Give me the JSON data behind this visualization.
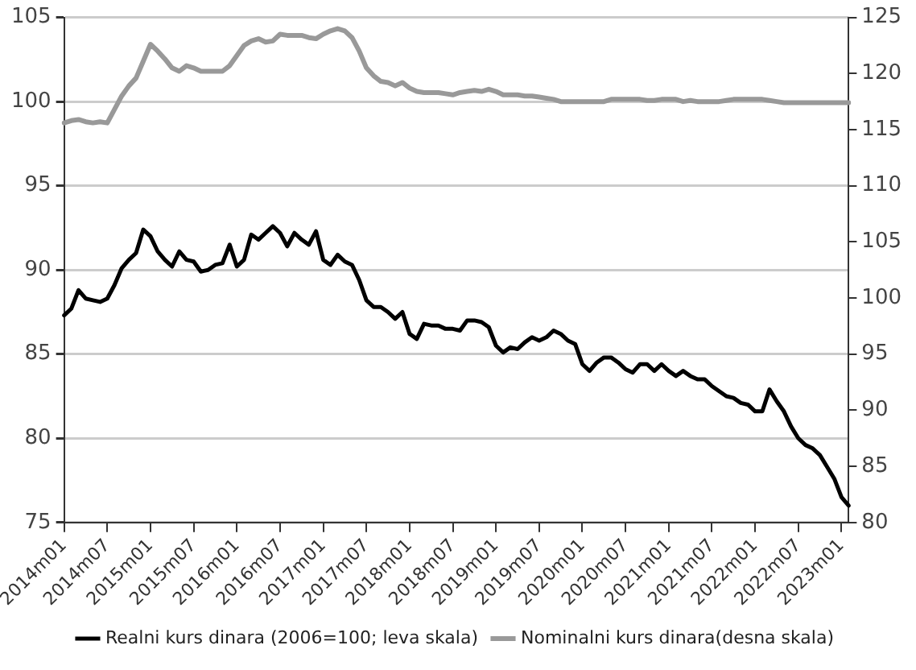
{
  "chart_data": {
    "type": "line",
    "categories": [
      "2014m01",
      null,
      null,
      null,
      null,
      null,
      "2014m07",
      null,
      null,
      null,
      null,
      null,
      "2015m01",
      null,
      null,
      null,
      null,
      null,
      "2015m07",
      null,
      null,
      null,
      null,
      null,
      "2016m01",
      null,
      null,
      null,
      null,
      null,
      "2016m07",
      null,
      null,
      null,
      null,
      null,
      "2017m01",
      null,
      null,
      null,
      null,
      null,
      "2017m07",
      null,
      null,
      null,
      null,
      null,
      "2018m01",
      null,
      null,
      null,
      null,
      null,
      "2018m07",
      null,
      null,
      null,
      null,
      null,
      "2019m01",
      null,
      null,
      null,
      null,
      null,
      "2019m07",
      null,
      null,
      null,
      null,
      null,
      "2020m01",
      null,
      null,
      null,
      null,
      null,
      "2020m07",
      null,
      null,
      null,
      null,
      null,
      "2021m01",
      null,
      null,
      null,
      null,
      null,
      "2021m07",
      null,
      null,
      null,
      null,
      null,
      "2022m01",
      null,
      null,
      null,
      null,
      null,
      "2022m07",
      null,
      null,
      null,
      null,
      null,
      "2023m01",
      null
    ],
    "series": [
      {
        "name": "Realni kurs dinara (2006=100; leva skala)",
        "color": "#000000",
        "values": [
          87.3,
          87.7,
          88.8,
          88.3,
          88.2,
          88.1,
          88.3,
          89.1,
          90.1,
          90.6,
          91.0,
          92.4,
          92.0,
          91.1,
          90.6,
          90.2,
          91.1,
          90.6,
          90.5,
          89.9,
          90.0,
          90.3,
          90.4,
          91.5,
          90.2,
          90.6,
          92.1,
          91.8,
          92.2,
          92.6,
          92.2,
          91.4,
          92.2,
          91.8,
          91.5,
          92.3,
          90.6,
          90.3,
          90.9,
          90.5,
          90.3,
          89.4,
          88.2,
          87.8,
          87.8,
          87.5,
          87.1,
          87.5,
          86.2,
          85.9,
          86.8,
          86.7,
          86.7,
          86.5,
          86.5,
          86.4,
          87.0,
          87.0,
          86.9,
          86.6,
          85.5,
          85.1,
          85.4,
          85.3,
          85.7,
          86.0,
          85.8,
          86.0,
          86.4,
          86.2,
          85.8,
          85.6,
          84.4,
          84.0,
          84.5,
          84.8,
          84.8,
          84.5,
          84.1,
          83.9,
          84.4,
          84.4,
          84.0,
          84.4,
          84.0,
          83.7,
          84.0,
          83.7,
          83.5,
          83.5,
          83.1,
          82.8,
          82.5,
          82.4,
          82.1,
          82.0,
          81.6,
          81.6,
          82.9,
          82.2,
          81.6,
          80.7,
          80.0,
          79.6,
          79.4,
          79.0,
          78.3,
          77.6,
          76.5,
          76.0
        ]
      },
      {
        "name": "Nominalni kurs dinara(desna skala)",
        "color": "#999999",
        "axis": "y2",
        "values": [
          115.6,
          115.8,
          115.9,
          115.7,
          115.6,
          115.7,
          115.6,
          116.8,
          118.0,
          118.9,
          119.6,
          121.1,
          122.6,
          122.0,
          121.3,
          120.5,
          120.2,
          120.7,
          120.5,
          120.2,
          120.2,
          120.2,
          120.2,
          120.7,
          121.6,
          122.5,
          122.9,
          123.1,
          122.8,
          122.9,
          123.5,
          123.4,
          123.4,
          123.4,
          123.2,
          123.1,
          123.5,
          123.8,
          124.0,
          123.8,
          123.2,
          122.0,
          120.5,
          119.8,
          119.3,
          119.2,
          118.9,
          119.2,
          118.7,
          118.4,
          118.3,
          118.3,
          118.3,
          118.2,
          118.1,
          118.3,
          118.4,
          118.5,
          118.4,
          118.6,
          118.4,
          118.1,
          118.1,
          118.1,
          118.0,
          118.0,
          117.9,
          117.8,
          117.7,
          117.5,
          117.5,
          117.5,
          117.5,
          117.5,
          117.5,
          117.5,
          117.7,
          117.7,
          117.7,
          117.7,
          117.7,
          117.6,
          117.6,
          117.7,
          117.7,
          117.7,
          117.5,
          117.6,
          117.5,
          117.5,
          117.5,
          117.5,
          117.6,
          117.7,
          117.7,
          117.7,
          117.7,
          117.7,
          117.6,
          117.5,
          117.4,
          117.4,
          117.4,
          117.4,
          117.4,
          117.4,
          117.4,
          117.4,
          117.4,
          117.4
        ]
      }
    ],
    "ylim": [
      75,
      105
    ],
    "yticks": [
      75,
      80,
      85,
      90,
      95,
      100,
      105
    ],
    "y2lim": [
      80,
      125
    ],
    "y2ticks": [
      80,
      85,
      90,
      95,
      100,
      105,
      110,
      115,
      120,
      125
    ],
    "grid": "y",
    "legend": "bottom",
    "marker": "none",
    "line_style": "solid"
  }
}
